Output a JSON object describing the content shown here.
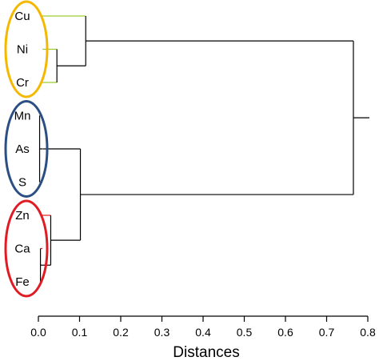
{
  "chart_data": {
    "type": "dendrogram",
    "xlabel": "Distances",
    "xlim": [
      0,
      0.8
    ],
    "xticks": [
      "0.0",
      "0.1",
      "0.2",
      "0.3",
      "0.4",
      "0.5",
      "0.6",
      "0.7",
      "0.8"
    ],
    "leaves": [
      "Cu",
      "Ni",
      "Cr",
      "Mn",
      "As",
      "S",
      "Zn",
      "Ca",
      "Fe"
    ],
    "leaf_branch_colors": {
      "Cu": "#9acd32",
      "Ni": "#9acd32",
      "Cr": "#9acd32",
      "Mn": "#e31a1c",
      "As": "#e31a1c",
      "S": "#e31a1c",
      "Zn": "#e31a1c",
      "Ca": "#e31a1c",
      "Fe": "#e31a1c"
    },
    "merges": [
      {
        "id": "m1",
        "children": [
          "Cr",
          "Ni"
        ],
        "height": 0.045
      },
      {
        "id": "m2",
        "children": [
          "Cu",
          "m1"
        ],
        "height": 0.115
      },
      {
        "id": "m3",
        "children": [
          "Mn",
          "S"
        ],
        "height": 0.003
      },
      {
        "id": "m4",
        "children": [
          "m3",
          "As"
        ],
        "height": 0.012
      },
      {
        "id": "m5",
        "children": [
          "Ca",
          "Fe"
        ],
        "height": 0.005
      },
      {
        "id": "m6",
        "children": [
          "Zn",
          "m5"
        ],
        "height": 0.03
      },
      {
        "id": "m7",
        "children": [
          "m4",
          "m6"
        ],
        "height": 0.102
      },
      {
        "id": "m8",
        "children": [
          "m2",
          "m7"
        ],
        "height": 0.765
      }
    ],
    "groups": [
      {
        "leaves": [
          "Cu",
          "Ni",
          "Cr"
        ],
        "color": "#f5b800"
      },
      {
        "leaves": [
          "Mn",
          "As",
          "S"
        ],
        "color": "#2b4f82"
      },
      {
        "leaves": [
          "Zn",
          "Ca",
          "Fe"
        ],
        "color": "#e01b24"
      }
    ],
    "tree_color": "#000000"
  }
}
